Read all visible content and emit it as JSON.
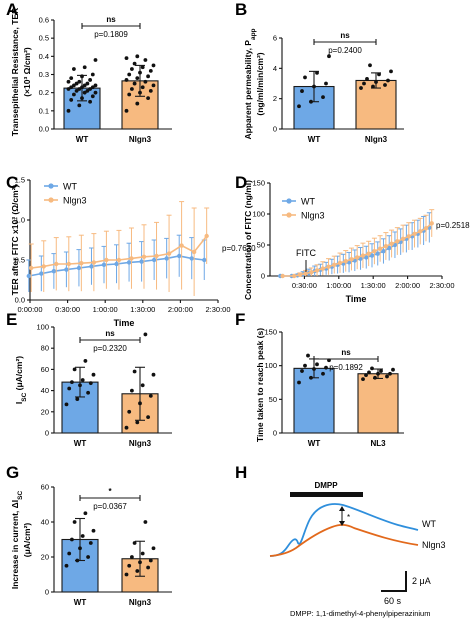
{
  "colors": {
    "wt": "#6ea8e6",
    "nlgn3": "#f7ba80",
    "wt_trace": "#2f8fdc",
    "nlgn3_trace": "#e2691c",
    "edge": "#1a1a1a"
  },
  "chart_data": [
    {
      "panel": "A",
      "type": "bar",
      "ylabel": "Transepithelial Resistance, TER",
      "ylabel_unit": "(×10³ Ω/cm²)",
      "categories": [
        "WT",
        "Nlgn3"
      ],
      "values": [
        0.225,
        0.265
      ],
      "errors": [
        0.07,
        0.085
      ],
      "points": [
        [
          0.1,
          0.13,
          0.15,
          0.16,
          0.17,
          0.18,
          0.19,
          0.2,
          0.2,
          0.21,
          0.21,
          0.22,
          0.22,
          0.22,
          0.23,
          0.23,
          0.23,
          0.24,
          0.24,
          0.24,
          0.25,
          0.25,
          0.26,
          0.26,
          0.27,
          0.28,
          0.29,
          0.3,
          0.33,
          0.34,
          0.38
        ],
        [
          0.1,
          0.14,
          0.17,
          0.19,
          0.2,
          0.21,
          0.22,
          0.23,
          0.24,
          0.25,
          0.26,
          0.27,
          0.28,
          0.29,
          0.3,
          0.31,
          0.32,
          0.33,
          0.34,
          0.35,
          0.36,
          0.38,
          0.39,
          0.4
        ]
      ],
      "ylim": [
        0,
        0.6
      ],
      "yticks": [
        "0.0",
        "0.1",
        "0.2",
        "0.3",
        "0.4",
        "0.5",
        "0.6"
      ],
      "sig": "ns",
      "pvalue": "p=0.1809"
    },
    {
      "panel": "B",
      "type": "bar",
      "ylabel": "Apparent permeability, P",
      "ylabel_sub": "app",
      "ylabel_unit": "(ng/ml/min/cm²)",
      "categories": [
        "WT",
        "Nlgn3"
      ],
      "values": [
        2.8,
        3.2
      ],
      "errors": [
        1.0,
        0.5
      ],
      "points": [
        [
          1.5,
          1.8,
          2.1,
          2.5,
          2.8,
          3.0,
          3.4,
          3.7,
          4.8
        ],
        [
          2.7,
          2.8,
          2.9,
          3.0,
          3.1,
          3.2,
          3.3,
          3.6,
          3.8,
          4.2
        ]
      ],
      "ylim": [
        0,
        6
      ],
      "yticks": [
        "0",
        "2",
        "4",
        "6"
      ],
      "sig": "ns",
      "pvalue": "p=0.2400"
    },
    {
      "panel": "C",
      "type": "line",
      "ylabel": "TER after FITC x10³ (Ω/cm²)",
      "xlabel": "Time",
      "xticks": [
        "0:00:00",
        "0:30:00",
        "1:00:00",
        "1:30:00",
        "2:00:00",
        "2:30:00"
      ],
      "xlim": [
        0,
        150
      ],
      "ylim": [
        0,
        1.5
      ],
      "yticks": [
        "0.0",
        "0.5",
        "1.0",
        "1.5"
      ],
      "x": [
        0,
        10,
        20,
        30,
        40,
        50,
        60,
        70,
        80,
        90,
        100,
        110,
        120,
        130,
        140
      ],
      "series": [
        {
          "name": "WT",
          "values": [
            0.3,
            0.33,
            0.36,
            0.38,
            0.4,
            0.42,
            0.44,
            0.45,
            0.47,
            0.48,
            0.5,
            0.52,
            0.55,
            0.52,
            0.5
          ],
          "errors": [
            0.2,
            0.22,
            0.22,
            0.22,
            0.23,
            0.23,
            0.23,
            0.24,
            0.24,
            0.25,
            0.25,
            0.25,
            0.26,
            0.26,
            0.25
          ]
        },
        {
          "name": "Nlgn3",
          "values": [
            0.4,
            0.42,
            0.45,
            0.45,
            0.46,
            0.47,
            0.5,
            0.5,
            0.52,
            0.54,
            0.55,
            0.58,
            0.68,
            0.6,
            0.8
          ],
          "errors": [
            0.3,
            0.32,
            0.33,
            0.34,
            0.35,
            0.36,
            0.36,
            0.37,
            0.38,
            0.4,
            0.42,
            0.48,
            0.55,
            0.55,
            0.35
          ]
        }
      ],
      "pvalue": "p=0.7630",
      "legend": "top-left"
    },
    {
      "panel": "D",
      "type": "line",
      "ylabel": "Concentration of FITC (ng/ml)",
      "xlabel": "Time",
      "xticks": [
        "0:30:00",
        "1:00:00",
        "1:30:00",
        "2:00:00",
        "2:30:00"
      ],
      "xlim": [
        0,
        150
      ],
      "ylim": [
        0,
        150
      ],
      "yticks": [
        "0",
        "50",
        "100",
        "150"
      ],
      "x": [
        10,
        20,
        25,
        30,
        35,
        40,
        45,
        50,
        55,
        60,
        65,
        70,
        75,
        80,
        85,
        90,
        95,
        100,
        105,
        110,
        115,
        120,
        125,
        130,
        135,
        140
      ],
      "series": [
        {
          "name": "WT",
          "values": [
            0,
            0,
            1,
            3,
            5,
            8,
            10,
            12,
            15,
            18,
            20,
            22,
            25,
            28,
            30,
            33,
            36,
            40,
            45,
            50,
            55,
            60,
            64,
            68,
            73,
            78
          ],
          "errors": [
            0,
            0,
            2,
            4,
            6,
            8,
            9,
            10,
            12,
            14,
            15,
            16,
            17,
            18,
            18,
            19,
            19,
            20,
            20,
            21,
            21,
            22,
            22,
            22,
            23,
            24
          ]
        },
        {
          "name": "Nlgn3",
          "values": [
            0,
            0,
            2,
            4,
            6,
            9,
            12,
            15,
            18,
            21,
            24,
            27,
            30,
            33,
            36,
            40,
            44,
            48,
            52,
            56,
            60,
            64,
            68,
            72,
            77,
            85
          ],
          "errors": [
            0,
            0,
            3,
            5,
            7,
            9,
            11,
            13,
            14,
            16,
            17,
            18,
            19,
            20,
            20,
            21,
            21,
            22,
            22,
            22,
            22,
            22,
            22,
            21,
            21,
            22
          ]
        }
      ],
      "annotation": "FITC",
      "pvalue": "p=0.2518",
      "legend": "top-left"
    },
    {
      "panel": "E",
      "type": "bar",
      "ylabel": "I",
      "ylabel_sub": "SC",
      "ylabel_unit": " (μA/cm²)",
      "categories": [
        "WT",
        "Nlgn3"
      ],
      "values": [
        48,
        37
      ],
      "errors": [
        14,
        25
      ],
      "points": [
        [
          27,
          32,
          38,
          42,
          45,
          47,
          48,
          50,
          55,
          60,
          68
        ],
        [
          5,
          10,
          15,
          20,
          28,
          35,
          40,
          45,
          55,
          58,
          93
        ]
      ],
      "ylim": [
        0,
        100
      ],
      "yticks": [
        "0",
        "20",
        "40",
        "60",
        "80",
        "100"
      ],
      "sig": "ns",
      "pvalue": "p=0.2320"
    },
    {
      "panel": "F",
      "type": "bar",
      "ylabel": "Time taken to reach peak (s)",
      "categories": [
        "WT",
        "NL3"
      ],
      "values": [
        96,
        88
      ],
      "errors": [
        14,
        7
      ],
      "points": [
        [
          75,
          82,
          88,
          92,
          95,
          97,
          100,
          102,
          108,
          115
        ],
        [
          80,
          82,
          84,
          86,
          88,
          88,
          90,
          92,
          94,
          96
        ]
      ],
      "ylim": [
        0,
        150
      ],
      "yticks": [
        "0",
        "50",
        "100",
        "150"
      ],
      "sig": "ns",
      "pvalue": "p=0.1892"
    },
    {
      "panel": "G",
      "type": "bar",
      "ylabel": "Increase in current, ΔI",
      "ylabel_sub": "SC",
      "ylabel_unit": "(μA/cm²)",
      "categories": [
        "WT",
        "Nlgn3"
      ],
      "values": [
        30,
        19
      ],
      "errors": [
        12,
        10
      ],
      "points": [
        [
          15,
          18,
          20,
          22,
          25,
          28,
          30,
          32,
          35,
          40,
          45
        ],
        [
          10,
          12,
          14,
          15,
          17,
          18,
          20,
          22,
          25,
          28,
          40
        ]
      ],
      "ylim": [
        0,
        60
      ],
      "yticks": [
        "0",
        "20",
        "40",
        "60"
      ],
      "sig": "*",
      "pvalue": "p=0.0367"
    },
    {
      "panel": "H",
      "type": "line",
      "stimulus": "DMPP",
      "series_labels": [
        "WT",
        "Nlgn3"
      ],
      "scale_y": "2 μA",
      "scale_x": "60 s",
      "peak_marker": "*",
      "footnote": "DMPP: 1,1-dimethyl-4-phenylpiperazinium"
    }
  ]
}
